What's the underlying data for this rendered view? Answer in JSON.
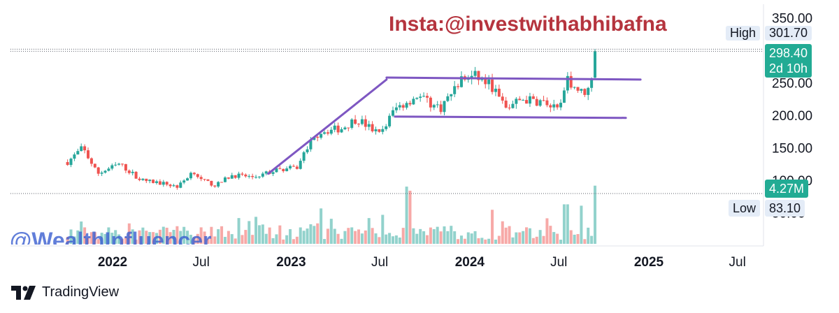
{
  "watermark": "Insta:@investwithabhibafna",
  "watermark2": "@WealthInfluencer",
  "brand": "TradingView",
  "tags": {
    "high_label": "High",
    "high_value": "301.70",
    "price_value": "298.40",
    "countdown": "2d 10h",
    "volume_value": "4.27M",
    "low_label": "Low",
    "low_value": "83.10"
  },
  "colors": {
    "up": "#26a69a",
    "down": "#ef5350",
    "trendline": "#7e57c2",
    "axis_text": "#131722"
  },
  "chart_data": {
    "type": "candlestick",
    "y_ticks": [
      "350.00",
      "250.00",
      "200.00",
      "150.00",
      "100.00",
      "50.00"
    ],
    "ylim": [
      50,
      350
    ],
    "x_ticks": [
      "2022",
      "Jul",
      "2023",
      "Jul",
      "2024",
      "Jul",
      "2025",
      "Jul"
    ],
    "x_tick_dates": [
      "2022-01-01",
      "2022-07-01",
      "2023-01-01",
      "2023-07-01",
      "2024-01-01",
      "2024-07-01",
      "2025-01-01",
      "2025-07-01"
    ],
    "price_keypoints": [
      [
        "2021-10-01",
        128
      ],
      [
        "2021-11-01",
        150
      ],
      [
        "2021-12-01",
        110
      ],
      [
        "2022-01-15",
        125
      ],
      [
        "2022-03-01",
        100
      ],
      [
        "2022-04-15",
        95
      ],
      [
        "2022-05-15",
        90
      ],
      [
        "2022-06-15",
        115
      ],
      [
        "2022-07-01",
        100
      ],
      [
        "2022-08-01",
        92
      ],
      [
        "2022-09-01",
        108
      ],
      [
        "2022-10-15",
        105
      ],
      [
        "2022-12-01",
        115
      ],
      [
        "2023-01-15",
        120
      ],
      [
        "2023-02-01",
        150
      ],
      [
        "2023-03-01",
        175
      ],
      [
        "2023-04-15",
        180
      ],
      [
        "2023-05-15",
        195
      ],
      [
        "2023-07-01",
        170
      ],
      [
        "2023-08-01",
        210
      ],
      [
        "2023-09-15",
        230
      ],
      [
        "2023-11-01",
        210
      ],
      [
        "2023-12-15",
        255
      ],
      [
        "2024-01-15",
        260
      ],
      [
        "2024-02-15",
        245
      ],
      [
        "2024-03-15",
        210
      ],
      [
        "2024-04-15",
        225
      ],
      [
        "2024-06-01",
        220
      ],
      [
        "2024-07-01",
        205
      ],
      [
        "2024-07-20",
        255
      ],
      [
        "2024-08-15",
        235
      ],
      [
        "2024-09-01",
        240
      ],
      [
        "2024-09-15",
        298.4
      ]
    ],
    "last_close": 298.4,
    "high": 301.7,
    "low": 83.1,
    "last_volume_m": 4.27,
    "volume_spikes": [
      [
        "2023-03-01",
        2.6
      ],
      [
        "2023-08-25",
        4.2
      ],
      [
        "2023-09-01",
        3.9
      ],
      [
        "2024-02-15",
        2.5
      ],
      [
        "2024-07-15",
        2.9
      ],
      [
        "2024-08-15",
        2.8
      ],
      [
        "2024-09-15",
        4.27
      ]
    ],
    "trendlines": [
      {
        "from": [
          "2022-11-15",
          110
        ],
        "to": [
          "2023-07-15",
          255
        ]
      },
      {
        "from": [
          "2023-07-15",
          258
        ],
        "to": [
          "2024-12-15",
          255
        ]
      },
      {
        "from": [
          "2023-08-01",
          198
        ],
        "to": [
          "2024-11-15",
          196
        ]
      }
    ],
    "dotted_levels": [
      301.7
    ]
  }
}
